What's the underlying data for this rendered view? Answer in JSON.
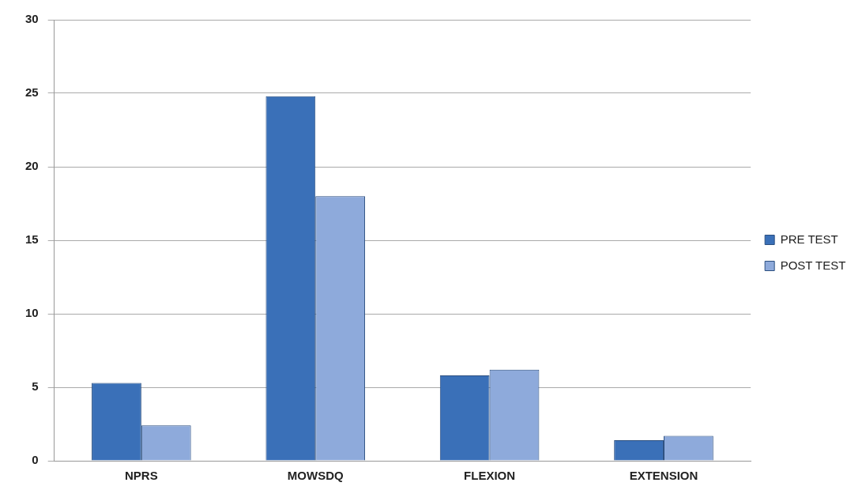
{
  "chart_data": {
    "type": "bar",
    "categories": [
      "NPRS",
      "MOWSDQ",
      "FLEXION",
      "EXTENSION"
    ],
    "series": [
      {
        "name": "PRE TEST",
        "color": "#3a70b8",
        "values": [
          5.3,
          24.8,
          5.8,
          1.4
        ]
      },
      {
        "name": "POST TEST",
        "color": "#8eaadb",
        "values": [
          2.4,
          18.0,
          6.2,
          1.7
        ]
      }
    ],
    "ylim": [
      0,
      30
    ],
    "yticks": [
      0,
      5,
      10,
      15,
      20,
      25,
      30
    ],
    "grid": "y",
    "legend": "right"
  }
}
